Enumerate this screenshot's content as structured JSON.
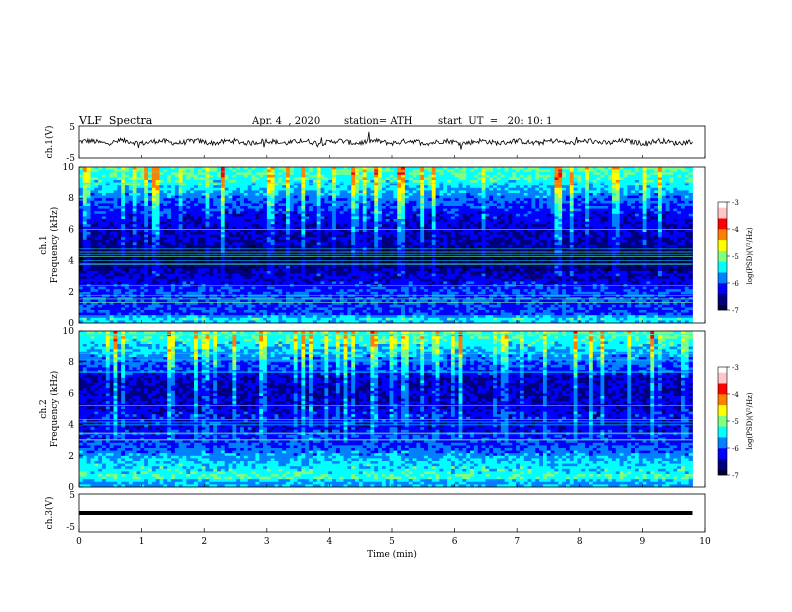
{
  "header": {
    "title": "VLF  Spectra",
    "date": "Apr. 4  , 2020",
    "station": "station= ATH",
    "start": "start  UT  =   20: 10: 1"
  },
  "chart_data": [
    {
      "type": "line",
      "ylabel": "ch.1(V)",
      "ylim": [
        -5,
        5
      ],
      "yticks": [
        "5",
        "-5"
      ],
      "xlim": [
        0,
        10
      ],
      "baseline": 0,
      "trace": "noisy signal around 0 V with spikes"
    },
    {
      "type": "heatmap",
      "ylabel_line1": "ch.1",
      "ylabel_line2": "Frequency  (kHz)",
      "ylim": [
        0,
        10
      ],
      "yticks": [
        "0",
        "2",
        "4",
        "6",
        "8",
        "10"
      ],
      "xlim": [
        0,
        9.8
      ],
      "colorbar": {
        "label": "log(PSD)(V²/Hz)",
        "range": [
          -7,
          -3
        ],
        "ticks": [
          "-3",
          "-4",
          "-5",
          "-6",
          "-7"
        ]
      },
      "profile": [
        {
          "f": 0.0,
          "v": -5.2
        },
        {
          "f": 0.3,
          "v": -5.0
        },
        {
          "f": 0.6,
          "v": -5.9
        },
        {
          "f": 1.0,
          "v": -5.8
        },
        {
          "f": 1.5,
          "v": -5.7
        },
        {
          "f": 2.0,
          "v": -5.8
        },
        {
          "f": 2.5,
          "v": -6.0
        },
        {
          "f": 3.0,
          "v": -6.2
        },
        {
          "f": 3.5,
          "v": -6.5
        },
        {
          "f": 4.0,
          "v": -6.8
        },
        {
          "f": 4.5,
          "v": -6.7
        },
        {
          "f": 5.0,
          "v": -6.4
        },
        {
          "f": 5.5,
          "v": -6.3
        },
        {
          "f": 6.0,
          "v": -6.2
        },
        {
          "f": 6.5,
          "v": -6.1
        },
        {
          "f": 7.0,
          "v": -6.0
        },
        {
          "f": 7.5,
          "v": -5.8
        },
        {
          "f": 8.0,
          "v": -5.6
        },
        {
          "f": 8.5,
          "v": -5.3
        },
        {
          "f": 9.0,
          "v": -5.0
        },
        {
          "f": 9.5,
          "v": -4.8
        },
        {
          "f": 10.0,
          "v": -4.7
        }
      ]
    },
    {
      "type": "heatmap",
      "ylabel_line1": "ch.2",
      "ylabel_line2": "Frequency  (kHz)",
      "ylim": [
        0,
        10
      ],
      "yticks": [
        "0",
        "2",
        "4",
        "6",
        "8",
        "10"
      ],
      "xlim": [
        0,
        9.8
      ],
      "colorbar": {
        "label": "log(PSD)(V²/Hz)",
        "range": [
          -7,
          -3
        ],
        "ticks": [
          "-3",
          "-4",
          "-5",
          "-6",
          "-7"
        ]
      },
      "profile": [
        {
          "f": 0.0,
          "v": -5.3
        },
        {
          "f": 0.3,
          "v": -5.4
        },
        {
          "f": 0.6,
          "v": -4.8
        },
        {
          "f": 1.0,
          "v": -5.0
        },
        {
          "f": 1.5,
          "v": -5.1
        },
        {
          "f": 2.0,
          "v": -5.4
        },
        {
          "f": 2.5,
          "v": -5.7
        },
        {
          "f": 3.0,
          "v": -5.9
        },
        {
          "f": 3.5,
          "v": -6.0
        },
        {
          "f": 4.0,
          "v": -6.1
        },
        {
          "f": 4.5,
          "v": -6.0
        },
        {
          "f": 5.0,
          "v": -6.1
        },
        {
          "f": 5.5,
          "v": -6.2
        },
        {
          "f": 6.0,
          "v": -6.3
        },
        {
          "f": 6.5,
          "v": -6.3
        },
        {
          "f": 7.0,
          "v": -6.2
        },
        {
          "f": 7.5,
          "v": -5.9
        },
        {
          "f": 8.0,
          "v": -5.7
        },
        {
          "f": 8.5,
          "v": -5.4
        },
        {
          "f": 9.0,
          "v": -5.1
        },
        {
          "f": 9.5,
          "v": -4.9
        },
        {
          "f": 10.0,
          "v": -4.8
        }
      ]
    },
    {
      "type": "line",
      "ylabel": "ch.3(V)",
      "ylim": [
        -5,
        5
      ],
      "yticks": [
        "5",
        "-5"
      ],
      "xlim": [
        0,
        10
      ],
      "baseline": 0,
      "trace": "flat thick line at 0 V",
      "xlabel": "Time  (min)",
      "xticks": [
        "0",
        "1",
        "2",
        "3",
        "4",
        "5",
        "6",
        "7",
        "8",
        "9",
        "10"
      ]
    }
  ],
  "colors": {
    "jet": [
      "#000033",
      "#00007f",
      "#0000ff",
      "#0080ff",
      "#00ffff",
      "#80ff80",
      "#ffff00",
      "#ff8000",
      "#ff0000",
      "#ffc8c8",
      "#ffffff"
    ],
    "axis": "#000000",
    "trace": "#000000"
  }
}
